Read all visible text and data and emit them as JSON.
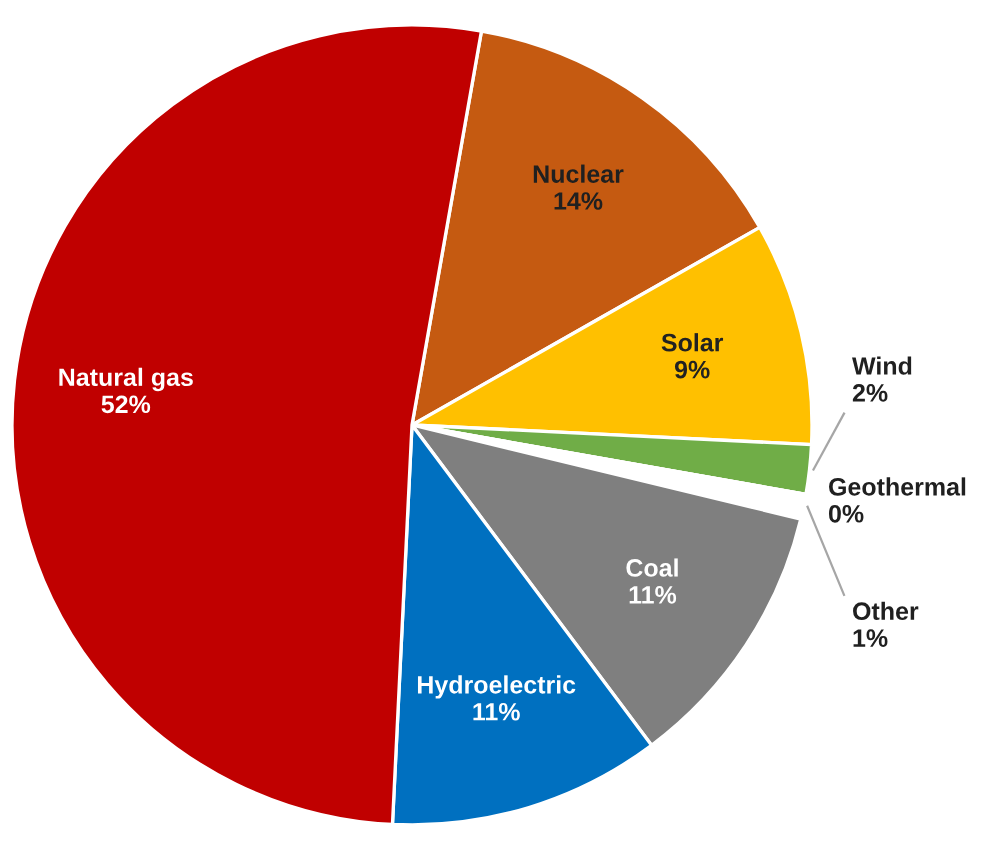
{
  "chart_data": {
    "type": "pie",
    "categories": [
      "Nuclear",
      "Solar",
      "Wind",
      "Geothermal",
      "Other",
      "Coal",
      "Hydroelectric",
      "Natural gas"
    ],
    "values": [
      14,
      9,
      2,
      0,
      1,
      11,
      11,
      52
    ],
    "value_labels": [
      "14%",
      "9%",
      "2%",
      "0%",
      "1%",
      "11%",
      "11%",
      "52%"
    ],
    "colors": [
      "#c55a11",
      "#ffc000",
      "#70ad47",
      "#a9d18e",
      "#ffffff",
      "#7f7f7f",
      "#0070c0",
      "#c00000"
    ]
  }
}
